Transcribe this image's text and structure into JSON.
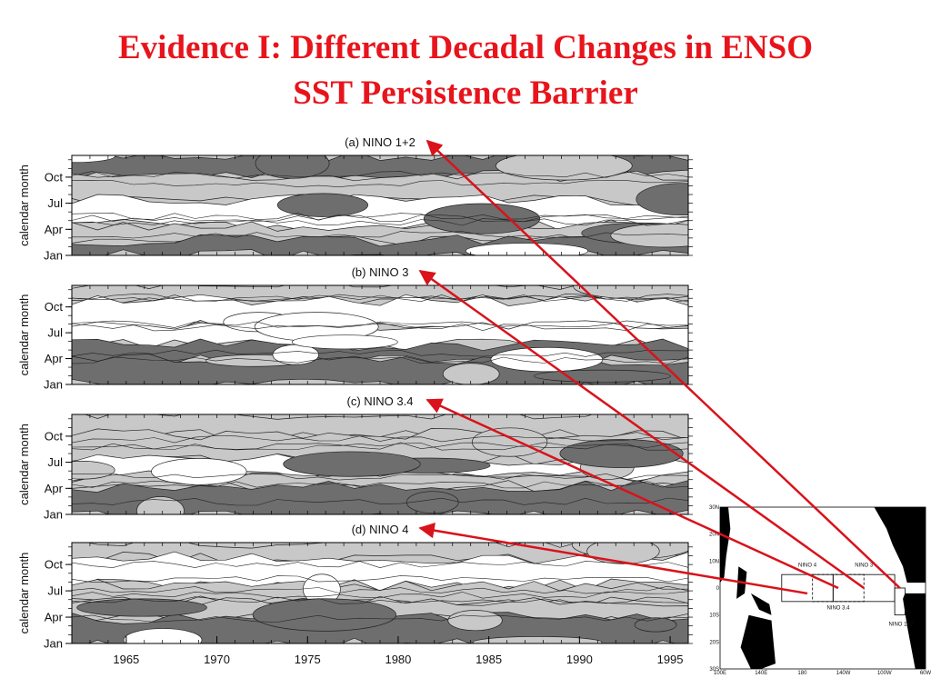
{
  "title": {
    "line1": "Evidence I: Different Decadal Changes in ENSO",
    "line2": "SST Persistence Barrier"
  },
  "chart_data": {
    "type": "contour",
    "y_label": "calendar month",
    "y_ticks": [
      "Jan",
      "Apr",
      "Jul",
      "Oct"
    ],
    "x_ticks": [
      1965,
      1970,
      1975,
      1980,
      1985,
      1990,
      1995
    ],
    "x_range": [
      1962,
      1996
    ],
    "panels": [
      {
        "label": "(a) NINO 1+2"
      },
      {
        "label": "(b) NINO 3"
      },
      {
        "label": "(c) NINO 3.4"
      },
      {
        "label": "(d) NINO 4"
      }
    ]
  },
  "map": {
    "lat_labels": [
      "30N",
      "20N",
      "10N",
      "0",
      "10S",
      "20S",
      "30S"
    ],
    "lon_labels": [
      "100E",
      "140E",
      "180",
      "140W",
      "100W",
      "60W"
    ],
    "region_labels": [
      "NINO 4",
      "NINO 3",
      "NINO 3.4",
      "NINO 1+2"
    ]
  },
  "colors": {
    "title": "#e8141c",
    "arrow": "#d9121b",
    "dark": "#6e6e6e",
    "light": "#c8c8c8",
    "white": "#ffffff"
  }
}
